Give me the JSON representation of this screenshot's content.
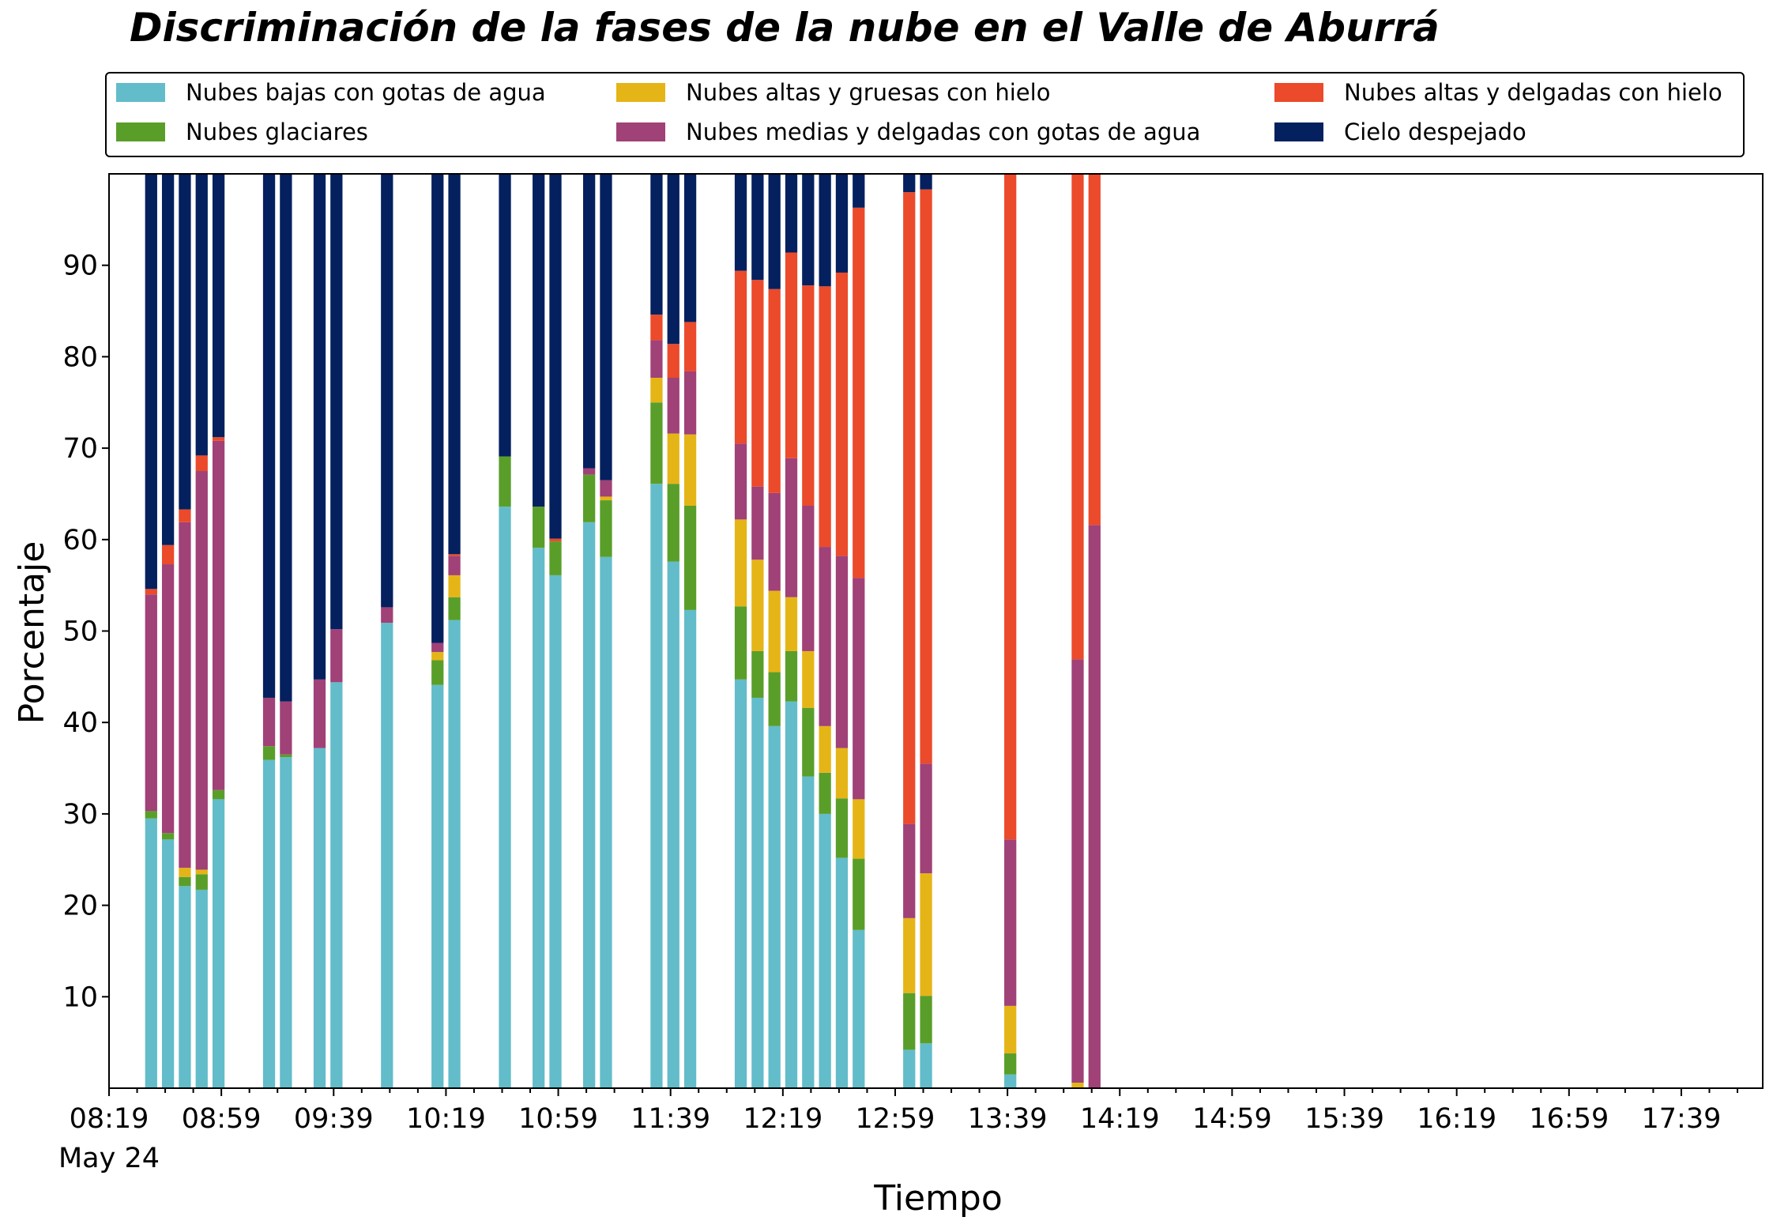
{
  "chart_data": {
    "type": "bar",
    "stacked": true,
    "title": "Discriminación de la fases de la nube en el Valle de Aburrá",
    "xlabel": "Tiempo",
    "ylabel": "Porcentaje",
    "ylim": [
      0,
      100
    ],
    "xlim": [
      "08:19",
      "18:08"
    ],
    "grid": false,
    "legend_position": "top",
    "date_label": "May 24",
    "x_ticks": [
      "08:19",
      "08:59",
      "09:39",
      "10:19",
      "10:59",
      "11:39",
      "12:19",
      "12:59",
      "13:39",
      "14:19",
      "14:59",
      "15:39",
      "16:19",
      "16:59",
      "17:39"
    ],
    "y_ticks": [
      10,
      20,
      30,
      40,
      50,
      60,
      70,
      80,
      90
    ],
    "bar_width_minutes": 4.3,
    "series": [
      {
        "name": "Nubes bajas con gotas de agua",
        "color": "#63bcc9"
      },
      {
        "name": "Nubes glaciares",
        "color": "#5a9e2a"
      },
      {
        "name": "Nubes altas y gruesas con hielo",
        "color": "#e5b517"
      },
      {
        "name": "Nubes medias y delgadas con gotas de agua",
        "color": "#a04177"
      },
      {
        "name": "Nubes altas y delgadas con hielo",
        "color": "#eb4a2b"
      },
      {
        "name": "Cielo despejado",
        "color": "#04205e"
      }
    ],
    "bars": [
      {
        "time": "08:34",
        "values": [
          29.5,
          0.8,
          0,
          23.7,
          0.6,
          45.4
        ]
      },
      {
        "time": "08:40",
        "values": [
          27.2,
          0.7,
          0,
          29.4,
          2.1,
          40.6
        ]
      },
      {
        "time": "08:46",
        "values": [
          22.1,
          1.0,
          1.0,
          37.8,
          1.4,
          36.7
        ]
      },
      {
        "time": "08:52",
        "values": [
          21.7,
          1.7,
          0.5,
          43.6,
          1.7,
          30.8
        ]
      },
      {
        "time": "08:58",
        "values": [
          31.6,
          1.0,
          0,
          38.2,
          0.4,
          28.8
        ]
      },
      {
        "time": "09:16",
        "values": [
          35.9,
          1.5,
          0,
          5.3,
          0,
          57.3
        ]
      },
      {
        "time": "09:22",
        "values": [
          36.2,
          0.3,
          0,
          5.8,
          0,
          57.7
        ]
      },
      {
        "time": "09:34",
        "values": [
          37.2,
          0,
          0,
          7.5,
          0,
          55.3
        ]
      },
      {
        "time": "09:40",
        "values": [
          44.4,
          0,
          0,
          5.8,
          0,
          49.8
        ]
      },
      {
        "time": "09:58",
        "values": [
          50.9,
          0,
          0,
          1.7,
          0,
          47.4
        ]
      },
      {
        "time": "10:16",
        "values": [
          44.1,
          2.7,
          0.9,
          1.0,
          0,
          51.3
        ]
      },
      {
        "time": "10:22",
        "values": [
          51.2,
          2.5,
          2.4,
          2.1,
          0.2,
          41.6
        ]
      },
      {
        "time": "10:40",
        "values": [
          63.6,
          5.5,
          0,
          0,
          0,
          30.9
        ]
      },
      {
        "time": "10:52",
        "values": [
          59.1,
          4.5,
          0,
          0,
          0,
          36.4
        ]
      },
      {
        "time": "10:58",
        "values": [
          56.1,
          3.7,
          0,
          0,
          0.3,
          39.9
        ]
      },
      {
        "time": "11:10",
        "values": [
          61.9,
          5.2,
          0,
          0.7,
          0,
          32.2
        ]
      },
      {
        "time": "11:16",
        "values": [
          58.1,
          6.2,
          0.4,
          1.8,
          0,
          33.5
        ]
      },
      {
        "time": "11:34",
        "values": [
          66.1,
          8.9,
          2.7,
          4.1,
          2.8,
          15.4
        ]
      },
      {
        "time": "11:40",
        "values": [
          57.6,
          8.5,
          5.5,
          6.1,
          3.7,
          18.6
        ]
      },
      {
        "time": "11:46",
        "values": [
          52.3,
          11.4,
          7.8,
          6.9,
          5.4,
          16.2
        ]
      },
      {
        "time": "12:04",
        "values": [
          44.7,
          8.0,
          9.5,
          8.3,
          18.9,
          10.6
        ]
      },
      {
        "time": "12:10",
        "values": [
          42.7,
          5.1,
          10.0,
          8.0,
          22.6,
          11.6
        ]
      },
      {
        "time": "12:16",
        "values": [
          39.6,
          5.9,
          8.9,
          10.7,
          22.3,
          12.6
        ]
      },
      {
        "time": "12:22",
        "values": [
          42.3,
          5.5,
          5.9,
          15.2,
          22.5,
          8.6
        ]
      },
      {
        "time": "12:28",
        "values": [
          34.1,
          7.5,
          6.2,
          15.9,
          24.1,
          12.2
        ]
      },
      {
        "time": "12:34",
        "values": [
          30.0,
          4.5,
          5.1,
          19.6,
          28.5,
          12.3
        ]
      },
      {
        "time": "12:40",
        "values": [
          25.2,
          6.5,
          5.5,
          21.0,
          31.0,
          10.8
        ]
      },
      {
        "time": "12:46",
        "values": [
          17.3,
          7.8,
          6.5,
          24.2,
          40.5,
          3.7
        ]
      },
      {
        "time": "13:04",
        "values": [
          4.2,
          6.2,
          8.2,
          10.3,
          69.1,
          2.0
        ]
      },
      {
        "time": "13:10",
        "values": [
          4.9,
          5.2,
          13.4,
          12.0,
          62.8,
          1.7
        ]
      },
      {
        "time": "13:40",
        "values": [
          1.5,
          2.3,
          5.2,
          18.2,
          72.8,
          0
        ]
      },
      {
        "time": "14:04",
        "values": [
          0,
          0,
          0.6,
          46.3,
          53.1,
          0
        ]
      },
      {
        "time": "14:10",
        "values": [
          0,
          0,
          0,
          61.6,
          38.4,
          0
        ]
      }
    ]
  }
}
